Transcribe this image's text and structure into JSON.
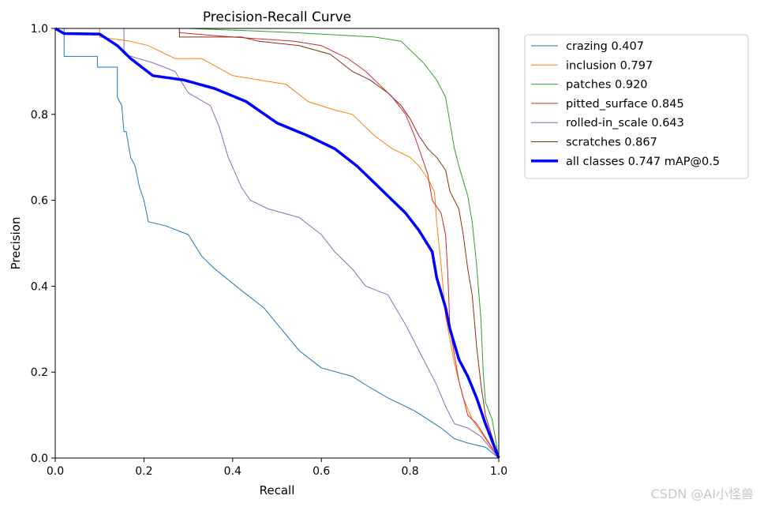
{
  "chart_data": {
    "type": "line",
    "title": "Precision-Recall Curve",
    "xlabel": "Recall",
    "ylabel": "Precision",
    "xlim": [
      0,
      1
    ],
    "ylim": [
      0,
      1
    ],
    "x_ticks": [
      "0.0",
      "0.2",
      "0.4",
      "0.6",
      "0.8",
      "1.0"
    ],
    "y_ticks": [
      "0.0",
      "0.2",
      "0.4",
      "0.6",
      "0.8",
      "1.0"
    ],
    "grid": false,
    "legend_position": "outside-top-right",
    "series": [
      {
        "name": "crazing 0.407",
        "color": "#1f77b4",
        "width": 1,
        "points": [
          [
            0,
            1.0
          ],
          [
            0.02,
            1.0
          ],
          [
            0.02,
            0.935
          ],
          [
            0.095,
            0.935
          ],
          [
            0.095,
            0.91
          ],
          [
            0.14,
            0.91
          ],
          [
            0.14,
            0.84
          ],
          [
            0.15,
            0.82
          ],
          [
            0.155,
            0.76
          ],
          [
            0.16,
            0.76
          ],
          [
            0.165,
            0.73
          ],
          [
            0.17,
            0.7
          ],
          [
            0.18,
            0.68
          ],
          [
            0.19,
            0.63
          ],
          [
            0.2,
            0.6
          ],
          [
            0.21,
            0.55
          ],
          [
            0.25,
            0.54
          ],
          [
            0.3,
            0.52
          ],
          [
            0.33,
            0.47
          ],
          [
            0.36,
            0.44
          ],
          [
            0.42,
            0.39
          ],
          [
            0.47,
            0.35
          ],
          [
            0.51,
            0.3
          ],
          [
            0.55,
            0.25
          ],
          [
            0.6,
            0.21
          ],
          [
            0.67,
            0.19
          ],
          [
            0.7,
            0.17
          ],
          [
            0.75,
            0.14
          ],
          [
            0.81,
            0.11
          ],
          [
            0.87,
            0.07
          ],
          [
            0.9,
            0.045
          ],
          [
            0.93,
            0.035
          ],
          [
            0.97,
            0.025
          ],
          [
            1.0,
            0.0
          ]
        ]
      },
      {
        "name": "inclusion 0.797",
        "color": "#ff7f0e",
        "width": 1,
        "points": [
          [
            0,
            1.0
          ],
          [
            0.1,
            1.0
          ],
          [
            0.1,
            0.98
          ],
          [
            0.17,
            0.97
          ],
          [
            0.21,
            0.96
          ],
          [
            0.27,
            0.93
          ],
          [
            0.33,
            0.93
          ],
          [
            0.4,
            0.89
          ],
          [
            0.46,
            0.88
          ],
          [
            0.52,
            0.87
          ],
          [
            0.57,
            0.83
          ],
          [
            0.63,
            0.81
          ],
          [
            0.67,
            0.8
          ],
          [
            0.72,
            0.75
          ],
          [
            0.76,
            0.72
          ],
          [
            0.8,
            0.7
          ],
          [
            0.82,
            0.68
          ],
          [
            0.84,
            0.65
          ],
          [
            0.855,
            0.62
          ],
          [
            0.86,
            0.55
          ],
          [
            0.87,
            0.45
          ],
          [
            0.88,
            0.33
          ],
          [
            0.9,
            0.22
          ],
          [
            0.92,
            0.14
          ],
          [
            0.94,
            0.09
          ],
          [
            0.96,
            0.06
          ],
          [
            1.0,
            0.0
          ]
        ]
      },
      {
        "name": "patches 0.920",
        "color": "#2ca02c",
        "width": 1,
        "points": [
          [
            0,
            1.0
          ],
          [
            0.3,
            1.0
          ],
          [
            0.43,
            0.995
          ],
          [
            0.54,
            0.99
          ],
          [
            0.72,
            0.98
          ],
          [
            0.78,
            0.97
          ],
          [
            0.8,
            0.95
          ],
          [
            0.83,
            0.92
          ],
          [
            0.86,
            0.88
          ],
          [
            0.88,
            0.84
          ],
          [
            0.89,
            0.78
          ],
          [
            0.9,
            0.72
          ],
          [
            0.91,
            0.68
          ],
          [
            0.93,
            0.61
          ],
          [
            0.94,
            0.55
          ],
          [
            0.95,
            0.45
          ],
          [
            0.96,
            0.32
          ],
          [
            0.965,
            0.2
          ],
          [
            0.97,
            0.13
          ],
          [
            0.985,
            0.09
          ],
          [
            1.0,
            0.0
          ]
        ]
      },
      {
        "name": "pitted_surface 0.845",
        "color": "#d62728",
        "width": 1,
        "points": [
          [
            0,
            1.0
          ],
          [
            0.28,
            1.0
          ],
          [
            0.28,
            0.99
          ],
          [
            0.4,
            0.98
          ],
          [
            0.54,
            0.97
          ],
          [
            0.6,
            0.96
          ],
          [
            0.66,
            0.93
          ],
          [
            0.7,
            0.9
          ],
          [
            0.73,
            0.87
          ],
          [
            0.76,
            0.84
          ],
          [
            0.79,
            0.8
          ],
          [
            0.81,
            0.75
          ],
          [
            0.83,
            0.69
          ],
          [
            0.84,
            0.66
          ],
          [
            0.85,
            0.6
          ],
          [
            0.87,
            0.57
          ],
          [
            0.88,
            0.52
          ],
          [
            0.885,
            0.43
          ],
          [
            0.89,
            0.3
          ],
          [
            0.9,
            0.24
          ],
          [
            0.91,
            0.18
          ],
          [
            0.93,
            0.1
          ],
          [
            0.95,
            0.08
          ],
          [
            1.0,
            0.0
          ]
        ]
      },
      {
        "name": "rolled-in_scale 0.643",
        "color": "#9467bd",
        "width": 1,
        "points": [
          [
            0,
            1.0
          ],
          [
            0.155,
            1.0
          ],
          [
            0.155,
            0.94
          ],
          [
            0.22,
            0.92
          ],
          [
            0.27,
            0.9
          ],
          [
            0.3,
            0.85
          ],
          [
            0.35,
            0.82
          ],
          [
            0.37,
            0.77
          ],
          [
            0.39,
            0.7
          ],
          [
            0.42,
            0.63
          ],
          [
            0.44,
            0.6
          ],
          [
            0.48,
            0.58
          ],
          [
            0.55,
            0.56
          ],
          [
            0.6,
            0.52
          ],
          [
            0.63,
            0.48
          ],
          [
            0.67,
            0.44
          ],
          [
            0.7,
            0.4
          ],
          [
            0.75,
            0.38
          ],
          [
            0.79,
            0.31
          ],
          [
            0.82,
            0.25
          ],
          [
            0.84,
            0.21
          ],
          [
            0.86,
            0.17
          ],
          [
            0.88,
            0.12
          ],
          [
            0.9,
            0.08
          ],
          [
            0.93,
            0.07
          ],
          [
            0.96,
            0.05
          ],
          [
            1.0,
            0.0
          ]
        ]
      },
      {
        "name": "scratches 0.867",
        "color": "#8c2d19",
        "width": 1,
        "points": [
          [
            0,
            1.0
          ],
          [
            0.28,
            1.0
          ],
          [
            0.28,
            0.98
          ],
          [
            0.42,
            0.98
          ],
          [
            0.46,
            0.97
          ],
          [
            0.55,
            0.96
          ],
          [
            0.62,
            0.94
          ],
          [
            0.67,
            0.9
          ],
          [
            0.71,
            0.88
          ],
          [
            0.75,
            0.85
          ],
          [
            0.78,
            0.82
          ],
          [
            0.8,
            0.79
          ],
          [
            0.82,
            0.75
          ],
          [
            0.84,
            0.72
          ],
          [
            0.86,
            0.7
          ],
          [
            0.88,
            0.67
          ],
          [
            0.89,
            0.62
          ],
          [
            0.91,
            0.58
          ],
          [
            0.92,
            0.52
          ],
          [
            0.93,
            0.44
          ],
          [
            0.94,
            0.38
          ],
          [
            0.95,
            0.26
          ],
          [
            0.96,
            0.17
          ],
          [
            0.97,
            0.1
          ],
          [
            1.0,
            0.0
          ]
        ]
      },
      {
        "name": "all classes 0.747 mAP@0.5",
        "color": "#0000ff",
        "width": 3.5,
        "points": [
          [
            0,
            1.0
          ],
          [
            0.02,
            0.988
          ],
          [
            0.1,
            0.987
          ],
          [
            0.14,
            0.96
          ],
          [
            0.17,
            0.93
          ],
          [
            0.22,
            0.89
          ],
          [
            0.29,
            0.88
          ],
          [
            0.36,
            0.86
          ],
          [
            0.43,
            0.83
          ],
          [
            0.5,
            0.78
          ],
          [
            0.57,
            0.75
          ],
          [
            0.63,
            0.72
          ],
          [
            0.68,
            0.68
          ],
          [
            0.73,
            0.63
          ],
          [
            0.79,
            0.57
          ],
          [
            0.82,
            0.53
          ],
          [
            0.85,
            0.48
          ],
          [
            0.86,
            0.42
          ],
          [
            0.88,
            0.35
          ],
          [
            0.89,
            0.3
          ],
          [
            0.91,
            0.23
          ],
          [
            0.93,
            0.19
          ],
          [
            0.95,
            0.14
          ],
          [
            0.97,
            0.08
          ],
          [
            1.0,
            0.0
          ]
        ]
      }
    ]
  },
  "watermark": "CSDN @AI小怪兽"
}
